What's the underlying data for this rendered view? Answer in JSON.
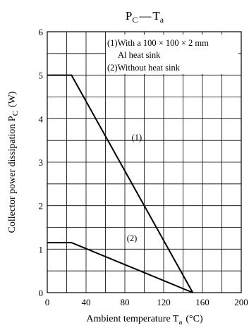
{
  "chart_data": {
    "type": "line",
    "title": "P C — T a",
    "title_parts": {
      "main1": "P",
      "sub1": "C",
      "dash": "—",
      "main2": "T",
      "sub2": "a"
    },
    "xlabel": {
      "text": "Ambient temperature  T",
      "sub": "a",
      "unit": "(°C)"
    },
    "ylabel": {
      "text": "Collector power dissipation  P",
      "sub": "C",
      "unit": "(W)"
    },
    "xlim": [
      0,
      200
    ],
    "ylim": [
      0,
      6
    ],
    "xticks": [
      "0",
      "40",
      "80",
      "120",
      "160",
      "200"
    ],
    "yticks": [
      "0",
      "1",
      "2",
      "3",
      "4",
      "5",
      "6"
    ],
    "grid": true,
    "legend_lines": [
      "(1)With a 100 × 100 × 2 mm",
      "Al heat sink",
      "(2)Without heat sink"
    ],
    "series": [
      {
        "name": "(1)",
        "label": "(1)",
        "x": [
          0,
          25,
          150
        ],
        "y": [
          5,
          5,
          0
        ]
      },
      {
        "name": "(2)",
        "label": "(2)",
        "x": [
          0,
          25,
          150
        ],
        "y": [
          1.15,
          1.15,
          0
        ]
      }
    ]
  }
}
